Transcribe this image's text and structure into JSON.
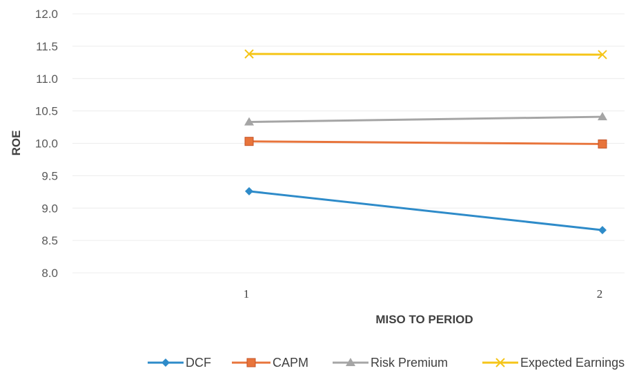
{
  "chart_data": {
    "type": "line",
    "xlabel": "MISO TO PERIOD",
    "ylabel": "ROE",
    "categories": [
      "1",
      "2"
    ],
    "ylim": [
      8.0,
      12.0
    ],
    "yticks": [
      "12.0",
      "11.5",
      "11.0",
      "10.5",
      "10.0",
      "9.5",
      "9.0",
      "8.5",
      "8.0"
    ],
    "grid": true,
    "legend_position": "bottom",
    "series": [
      {
        "name": "DCF",
        "values": [
          9.26,
          8.66
        ],
        "color": "#2E8BC9",
        "marker": "diamond"
      },
      {
        "name": "CAPM",
        "values": [
          10.03,
          9.99
        ],
        "color": "#E8743B",
        "marker": "square"
      },
      {
        "name": "Risk Premium",
        "values": [
          10.33,
          10.41
        ],
        "color": "#A5A5A5",
        "marker": "triangle"
      },
      {
        "name": "Expected Earnings",
        "values": [
          11.38,
          11.37
        ],
        "color": "#F5C518",
        "marker": "x"
      }
    ]
  }
}
